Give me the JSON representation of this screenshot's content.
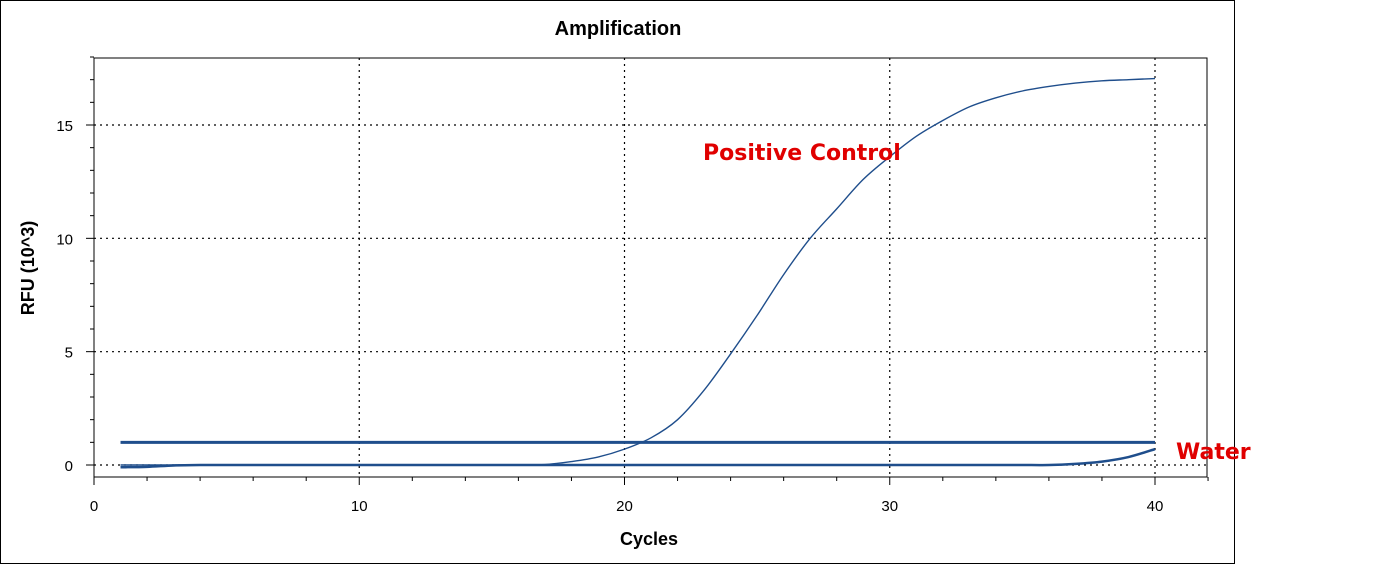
{
  "chart_data": {
    "type": "line",
    "title": "Amplification",
    "xlabel": "Cycles",
    "ylabel": "RFU (10^3)",
    "xlim": [
      0,
      42
    ],
    "ylim": [
      -0.5,
      18
    ],
    "xticks": [
      0,
      10,
      20,
      30,
      40
    ],
    "yticks": [
      0,
      5,
      10,
      15
    ],
    "grid": true,
    "line_color": "#1f4e8c",
    "annotation_color": "#e00000",
    "annotations": [
      "Positive Control",
      "Water"
    ],
    "threshold": {
      "value": 1.0,
      "x": [
        1,
        40
      ]
    },
    "series": [
      {
        "x": [
          1,
          2,
          3,
          4,
          5,
          6,
          7,
          8,
          9,
          10,
          11,
          12,
          13,
          14,
          15,
          16,
          17,
          18,
          19,
          20,
          21,
          22,
          23,
          24,
          25,
          26,
          27,
          28,
          29,
          30,
          31,
          32,
          33,
          34,
          35,
          36,
          37,
          38,
          39,
          40
        ],
        "values": [
          0,
          0,
          0,
          0,
          0,
          0,
          0,
          0,
          0,
          0,
          0,
          0,
          0,
          0,
          0,
          0,
          0.02,
          0.15,
          0.35,
          0.7,
          1.2,
          2.0,
          3.3,
          4.9,
          6.6,
          8.4,
          10.0,
          11.3,
          12.6,
          13.6,
          14.5,
          15.2,
          15.8,
          16.2,
          16.5,
          16.7,
          16.85,
          16.95,
          17.0,
          17.05
        ]
      },
      {
        "x": [
          1,
          2,
          3,
          4,
          5,
          6,
          7,
          8,
          9,
          10,
          11,
          12,
          13,
          14,
          15,
          16,
          17,
          18,
          19,
          20,
          21,
          22,
          23,
          24,
          25,
          26,
          27,
          28,
          29,
          30,
          31,
          32,
          33,
          34,
          35,
          36,
          37,
          38,
          39,
          40
        ],
        "values": [
          -0.1,
          -0.08,
          -0.02,
          0,
          0,
          0,
          0,
          0,
          0,
          0,
          0,
          0,
          0,
          0,
          0,
          0,
          0,
          0,
          0,
          0,
          0,
          0,
          0,
          0,
          0,
          0,
          0,
          0,
          0,
          0,
          0,
          0,
          0,
          0,
          0,
          0,
          0.05,
          0.15,
          0.35,
          0.7
        ]
      }
    ]
  }
}
